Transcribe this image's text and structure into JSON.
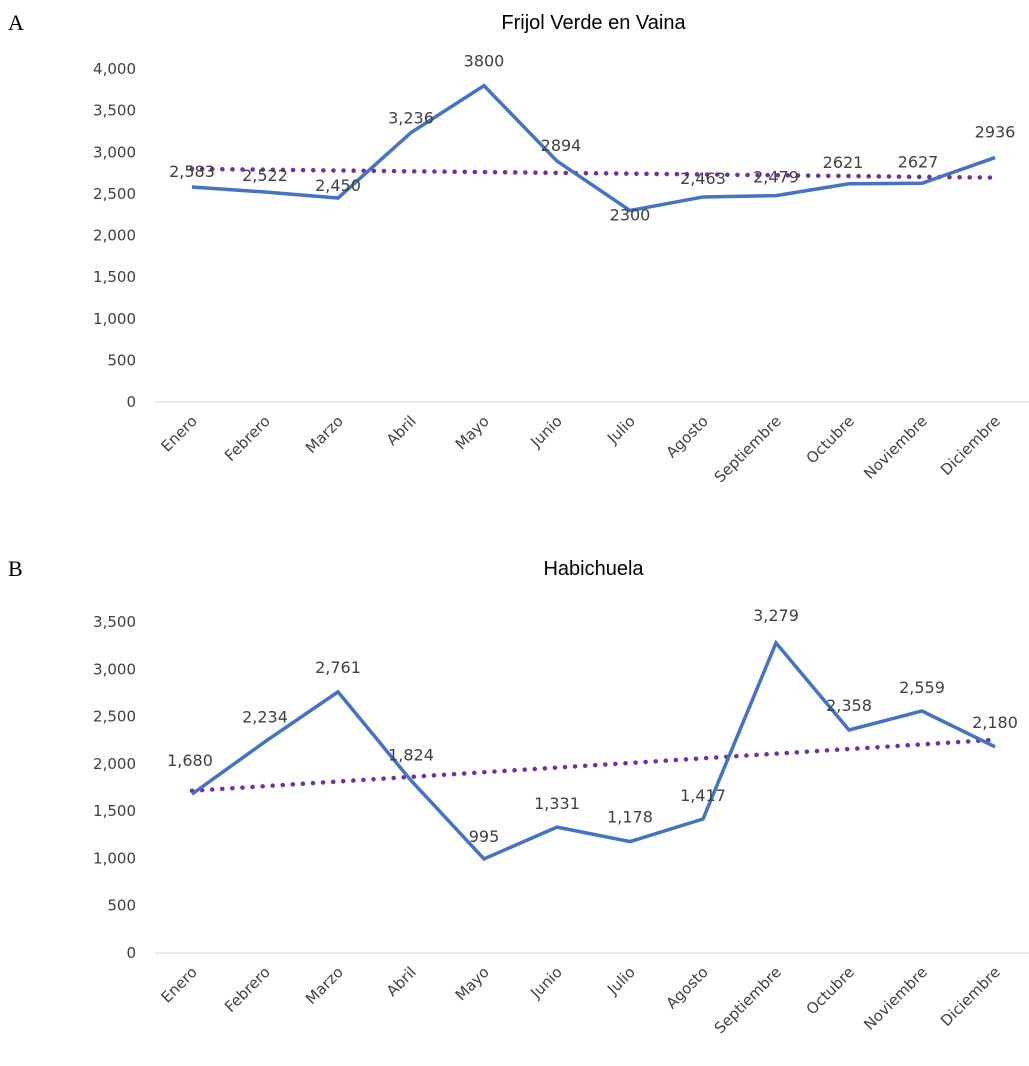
{
  "chart_data": [
    {
      "type": "line",
      "panel_label": "A",
      "title": "Frijol Verde en Vaina",
      "xlabel": "",
      "ylabel": "",
      "categories": [
        "Enero",
        "Febrero",
        "Marzo",
        "Abril",
        "Mayo",
        "Junio",
        "Julio",
        "Agosto",
        "Septiembre",
        "Octubre",
        "Noviembre",
        "Diciembre"
      ],
      "series": [
        {
          "values": [
            2583,
            2522,
            2450,
            3236,
            3800,
            2894,
            2300,
            2463,
            2479,
            2621,
            2627,
            2936
          ],
          "labels": [
            "2,583",
            "2,522",
            "2,450",
            "3,236",
            "3800",
            "2894",
            "2300",
            "2,463",
            "2,479",
            "2621",
            "2627",
            "2936"
          ],
          "color": "#4472c4",
          "style": "solid"
        },
        {
          "trend": "linear",
          "from": 2800,
          "to": 2695,
          "color": "#7030a0",
          "style": "dotted"
        }
      ],
      "yticks": [
        "0",
        "500",
        "1,000",
        "1,500",
        "2,000",
        "2,500",
        "3,000",
        "3,500",
        "4,000"
      ],
      "ylim": [
        0,
        4000
      ],
      "grid": false,
      "legend": "none"
    },
    {
      "type": "line",
      "panel_label": "B",
      "title": "Habichuela",
      "xlabel": "",
      "ylabel": "",
      "categories": [
        "Enero",
        "Febrero",
        "Marzo",
        "Abril",
        "Mayo",
        "Junio",
        "Julio",
        "Agosto",
        "Septiembre",
        "Octubre",
        "Noviembre",
        "Diciembre"
      ],
      "series": [
        {
          "values": [
            1680,
            2234,
            2761,
            1824,
            995,
            1331,
            1178,
            1417,
            3279,
            2358,
            2559,
            2180
          ],
          "labels": [
            "1,680",
            "2,234",
            "2,761",
            "1,824",
            "995",
            "1,331",
            "1,178",
            "1,417",
            "3,279",
            "2,358",
            "2,559",
            "2,180"
          ],
          "color": "#4472c4",
          "style": "solid"
        },
        {
          "trend": "linear",
          "from": 1715,
          "to": 2255,
          "color": "#7030a0",
          "style": "dotted"
        }
      ],
      "yticks": [
        "0",
        "500",
        "1,000",
        "1,500",
        "2,000",
        "2,500",
        "3,000",
        "3,500"
      ],
      "ylim": [
        0,
        3500
      ],
      "grid": false,
      "legend": "none"
    }
  ]
}
